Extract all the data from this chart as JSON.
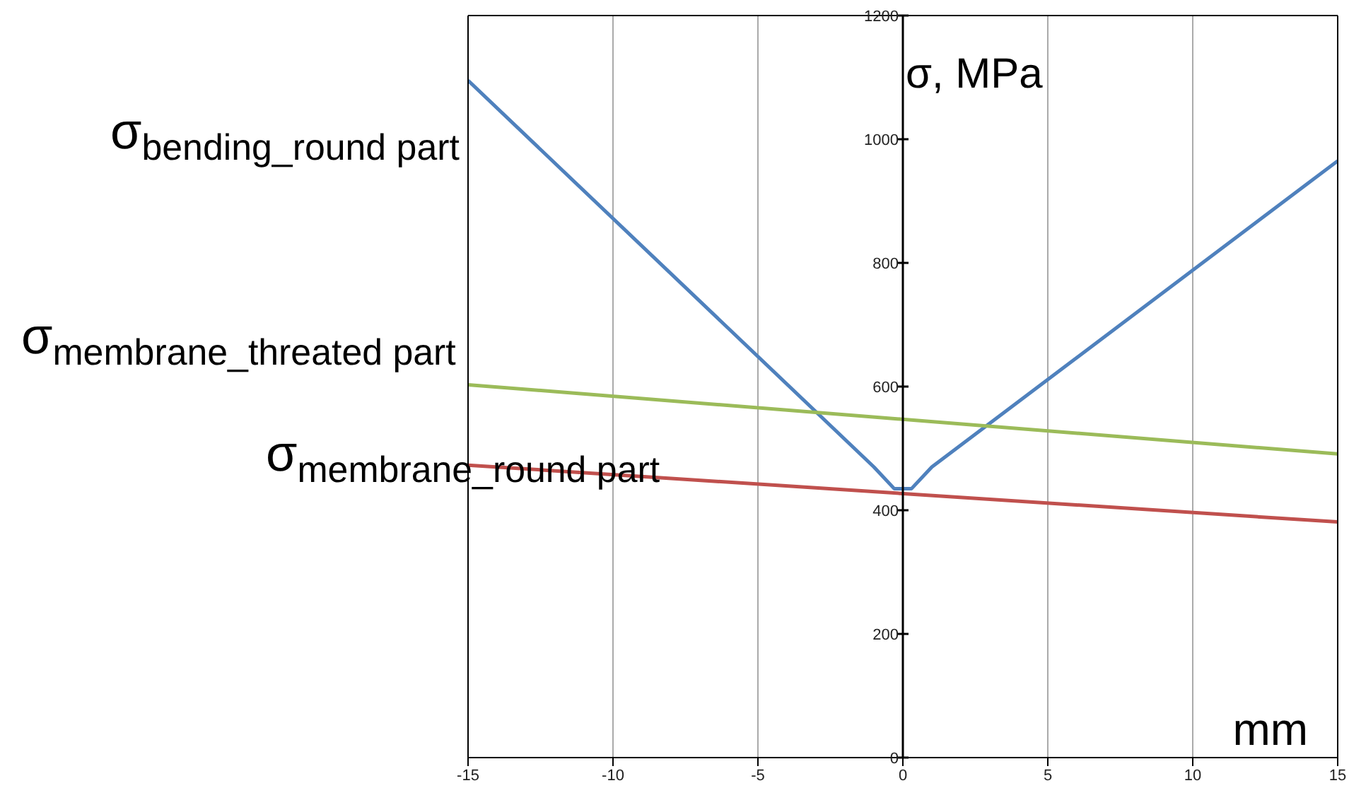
{
  "chart_data": {
    "type": "line",
    "xlabel": "mm",
    "ylabel": "σ, MPa",
    "xlim": [
      -15,
      15
    ],
    "ylim": [
      0,
      1200
    ],
    "xticks": [
      -15,
      -10,
      -5,
      0,
      5,
      10,
      15
    ],
    "yticks": [
      0,
      200,
      400,
      600,
      800,
      1000,
      1200
    ],
    "grid": true,
    "marker": "none",
    "line_style": "solid",
    "series": [
      {
        "color": "#4f81bd",
        "x": [
          -15,
          -1,
          -0.3,
          0.3,
          1,
          15
        ],
        "values": [
          1095,
          470,
          435,
          435,
          470,
          965
        ]
      },
      {
        "color": "#9bbb59",
        "x": [
          -15,
          15
        ],
        "values": [
          603,
          491
        ]
      },
      {
        "color": "#c0504d",
        "x": [
          -15,
          15
        ],
        "values": [
          473,
          381
        ]
      }
    ],
    "annotations": [
      "σ$_{bending_round part}$",
      "σ$_{membrane_threated part}$",
      "σ$_{membrane_round part}$"
    ]
  }
}
